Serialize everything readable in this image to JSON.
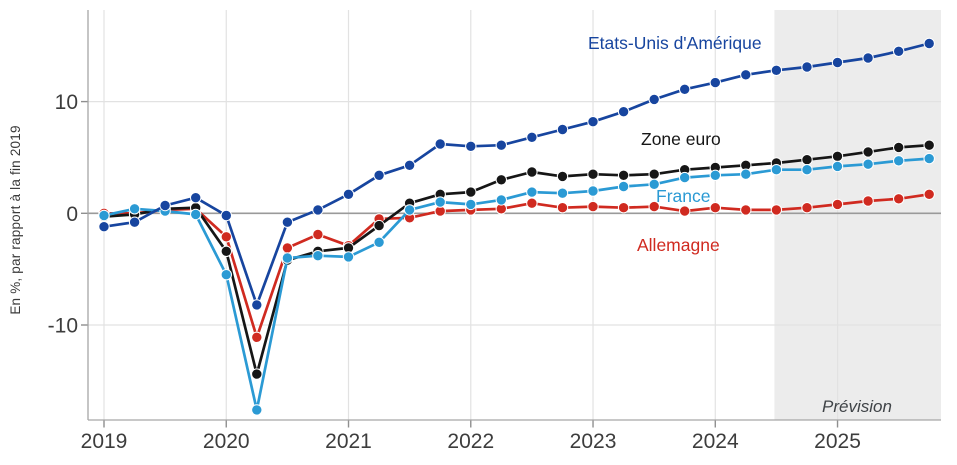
{
  "chart_data": {
    "type": "line",
    "title": "",
    "ylabel": "En %, par rapport à la fin 2019",
    "x_start": "2019Q1",
    "frequency": "quarterly",
    "x_tick_labels": [
      "2019",
      "2020",
      "2021",
      "2022",
      "2023",
      "2024",
      "2025"
    ],
    "y_ticks": [
      10,
      0,
      -10
    ],
    "y_tick_labels": [
      "10",
      "0",
      "-10"
    ],
    "ylim": [
      -18.5,
      18.2
    ],
    "grid": "on",
    "zero_line": true,
    "forecast": {
      "label": "Prévision",
      "start_quarter_index": 22,
      "shade_color": "#ececec"
    },
    "series": [
      {
        "name": "Allemagne",
        "color": "#d02a20",
        "values": [
          0.0,
          0.0,
          0.3,
          0.4,
          -2.1,
          -11.1,
          -3.1,
          -1.9,
          -2.9,
          -0.5,
          -0.4,
          0.2,
          0.3,
          0.4,
          0.9,
          0.5,
          0.6,
          0.5,
          0.6,
          0.2,
          0.5,
          0.3,
          0.3,
          0.5,
          0.8,
          1.1,
          1.3,
          1.7
        ]
      },
      {
        "name": "Zone euro",
        "color": "#161616",
        "values": [
          -0.3,
          -0.1,
          0.4,
          0.5,
          -3.4,
          -14.4,
          -4.2,
          -3.4,
          -3.1,
          -1.1,
          0.9,
          1.7,
          1.9,
          3.0,
          3.7,
          3.3,
          3.5,
          3.4,
          3.5,
          3.9,
          4.1,
          4.3,
          4.5,
          4.8,
          5.1,
          5.5,
          5.9,
          6.1
        ]
      },
      {
        "name": "France",
        "color": "#2b9ad4",
        "values": [
          -0.2,
          0.4,
          0.2,
          -0.1,
          -5.5,
          -17.6,
          -4.0,
          -3.8,
          -3.9,
          -2.6,
          0.3,
          1.0,
          0.8,
          1.2,
          1.9,
          1.8,
          2.0,
          2.4,
          2.6,
          3.2,
          3.4,
          3.5,
          3.9,
          3.9,
          4.2,
          4.4,
          4.7,
          4.9
        ]
      },
      {
        "name": "Etats-Unis d'Amérique",
        "color": "#17459f",
        "values": [
          -1.2,
          -0.8,
          0.7,
          1.4,
          -0.2,
          -8.2,
          -0.8,
          0.3,
          1.7,
          3.4,
          4.3,
          6.2,
          6.0,
          6.1,
          6.8,
          7.5,
          8.2,
          9.1,
          10.2,
          11.1,
          11.7,
          12.4,
          12.8,
          13.1,
          13.5,
          13.9,
          14.5,
          15.2
        ]
      }
    ],
    "legend_position": "annotations-on-chart",
    "colors": {
      "grid": "#e2e2e2",
      "zero_line": "#9a9a9a",
      "axis": "#a6a6a6",
      "tick_label": "#3d3d3d"
    }
  }
}
